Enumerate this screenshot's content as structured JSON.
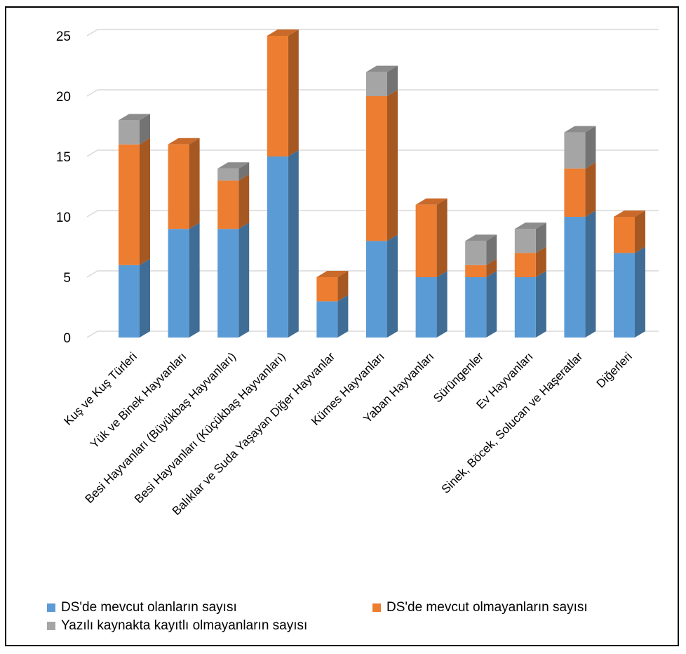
{
  "chart_data": {
    "type": "bar",
    "stacked": true,
    "style": "3d",
    "grid": true,
    "legend_position": "bottom",
    "ylim": [
      0,
      25
    ],
    "yticks": [
      0,
      5,
      10,
      15,
      20,
      25
    ],
    "categories": [
      "Kuş ve Kuş Türleri",
      "Yük ve Binek Hayvanları",
      "Besi Hayvanları (Büyükbaş Hayvanları)",
      "Besi Hayvanları (Küçükbaş Hayvanları)",
      "Balıklar ve Suda Yaşayan Diğer Hayvanlar",
      "Kümes Hayvanları",
      "Yaban Hayvanları",
      "Sürüngenler",
      "Ev Hayvanları",
      "Sinek, Böcek, Solucan ve Haşeratlar",
      "Diğerleri"
    ],
    "series": [
      {
        "name": "DS'de mevcut olanların sayısı",
        "color": "#5b9bd5",
        "values": [
          6,
          9,
          9,
          15,
          3,
          8,
          5,
          5,
          5,
          10,
          7
        ]
      },
      {
        "name": "DS'de mevcut olmayanların sayısı",
        "color": "#ed7d31",
        "values": [
          10,
          7,
          4,
          10,
          2,
          12,
          6,
          1,
          2,
          4,
          3
        ]
      },
      {
        "name": "Yazılı kaynakta kayıtlı olmayanların sayısı",
        "color": "#a5a5a5",
        "values": [
          2,
          0,
          1,
          0,
          0,
          2,
          0,
          2,
          2,
          3,
          0
        ]
      }
    ]
  }
}
